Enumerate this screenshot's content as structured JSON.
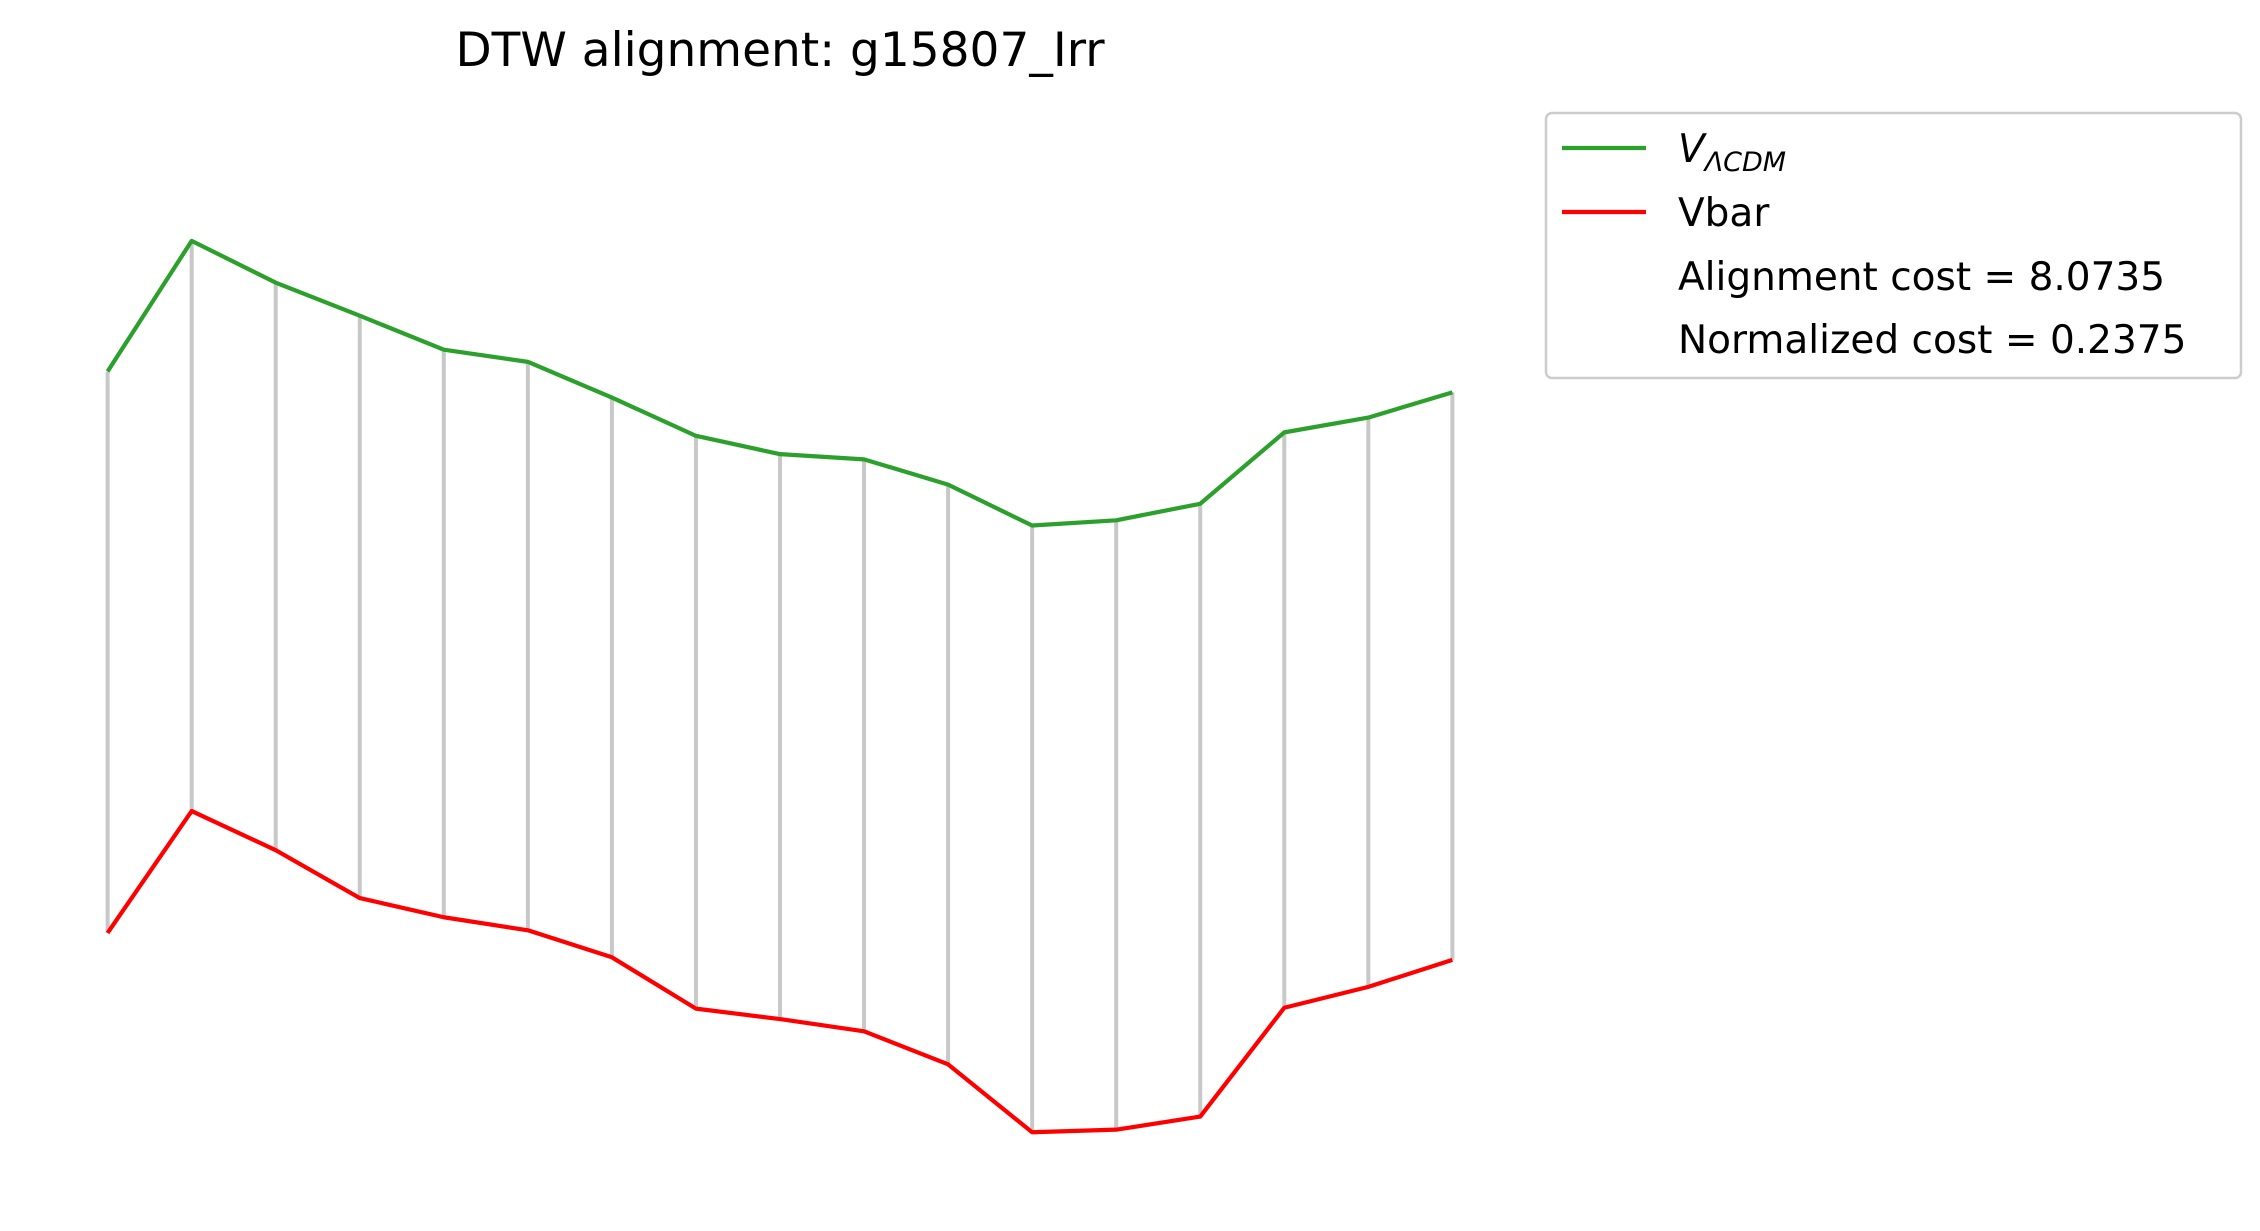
{
  "chart_data": {
    "type": "line",
    "title": "DTW alignment: g15807_Irr",
    "axes_visible": false,
    "x": [
      0,
      1,
      2,
      3,
      4,
      5,
      6,
      7,
      8,
      9,
      10,
      11,
      12,
      13,
      14,
      15,
      16
    ],
    "series": [
      {
        "name": "V_ΛCDM",
        "color": "#2ca02c",
        "values": [
          850,
          1000,
          952,
          914,
          875,
          861,
          820,
          776,
          755,
          749,
          720,
          673,
          679,
          698,
          780,
          797,
          826
        ]
      },
      {
        "name": "Vbar",
        "color": "#ff0000",
        "values": [
          205,
          345,
          300,
          245,
          223,
          208,
          177,
          118,
          106,
          92,
          54,
          -24,
          -21,
          -6,
          119,
          143,
          174
        ]
      }
    ],
    "alignment_pairs": [
      [
        0,
        0
      ],
      [
        1,
        1
      ],
      [
        2,
        2
      ],
      [
        3,
        3
      ],
      [
        4,
        4
      ],
      [
        5,
        5
      ],
      [
        6,
        6
      ],
      [
        7,
        7
      ],
      [
        8,
        8
      ],
      [
        9,
        9
      ],
      [
        10,
        10
      ],
      [
        11,
        11
      ],
      [
        12,
        12
      ],
      [
        13,
        13
      ],
      [
        14,
        14
      ],
      [
        15,
        15
      ],
      [
        16,
        16
      ]
    ],
    "alignment_line_color": "#c8c8c8",
    "ylim": [
      -80,
      1140
    ],
    "xlim": [
      -0.4,
      16.4
    ],
    "legend": {
      "placement": "outside-upper-right",
      "entries": [
        {
          "label_base": "V",
          "label_sub": "ΛCDM",
          "color": "#2ca02c"
        },
        {
          "label": "Vbar",
          "color": "#ff0000"
        },
        {
          "label": "Alignment cost = 8.0735",
          "color": null
        },
        {
          "label": "Normalized cost = 0.2375",
          "color": null
        }
      ]
    }
  }
}
